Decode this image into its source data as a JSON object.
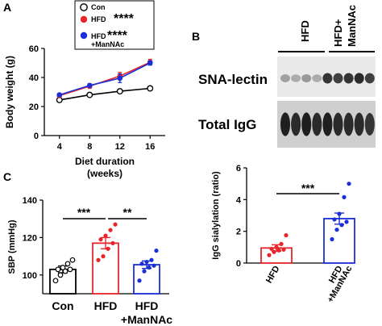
{
  "colors": {
    "con": "#000000",
    "hfd": "#e8262a",
    "mannac": "#1b2fd6",
    "white": "#ffffff"
  },
  "panels": {
    "a": "A",
    "b": "B",
    "c": "C"
  },
  "chart_data": [
    {
      "id": "A",
      "type": "line",
      "ylabel": "Body weight (g)",
      "xlabel_line1": "Diet duration",
      "xlabel_line2": "(weeks)",
      "xticks": [
        "4",
        "8",
        "12",
        "16"
      ],
      "x": [
        4,
        8,
        12,
        16
      ],
      "xlim": [
        2,
        18
      ],
      "ylim": [
        0,
        60
      ],
      "yticks": [
        "0",
        "20",
        "40",
        "60"
      ],
      "legend_position": "top-left",
      "legend": {
        "con": "Con",
        "hfd": "HFD",
        "hfd_stars": "****",
        "mannac_l1": "HFD",
        "mannac_stars": "****",
        "mannac_l2": "+ManNAc"
      },
      "series": [
        {
          "key": "con",
          "values": [
            24.5,
            28.0,
            30.5,
            32.5
          ],
          "err": [
            0.8,
            0.8,
            0.8,
            0.8
          ]
        },
        {
          "key": "hfd",
          "values": [
            27.5,
            34.0,
            41.0,
            50.5
          ],
          "err": [
            1.2,
            1.5,
            2.5,
            2.0
          ]
        },
        {
          "key": "mannac",
          "values": [
            28.0,
            34.5,
            39.5,
            50.0
          ],
          "err": [
            1.0,
            1.2,
            3.0,
            1.5
          ]
        }
      ]
    },
    {
      "id": "B",
      "type": "bar",
      "ylabel": "IgG sialylation (ratio)",
      "categories": [
        {
          "key": "hfd",
          "l1": "HFD",
          "l2": ""
        },
        {
          "key": "mannac",
          "l1": "HFD",
          "l2": "+ManNAc"
        }
      ],
      "values": [
        0.95,
        2.8
      ],
      "err": [
        0.2,
        0.35
      ],
      "points": [
        [
          0.5,
          0.7,
          0.8,
          0.85,
          0.9,
          1.0,
          1.2,
          1.75
        ],
        [
          1.5,
          2.1,
          2.4,
          2.6,
          2.75,
          3.1,
          4.15,
          5.0
        ]
      ],
      "ylim": [
        0,
        6
      ],
      "yticks": [
        "0",
        "2",
        "4",
        "6"
      ],
      "significance": "***"
    },
    {
      "id": "C",
      "type": "bar",
      "ylabel": "SBP (mmHg)",
      "categories": [
        {
          "key": "con",
          "l1": "Con",
          "l2": ""
        },
        {
          "key": "hfd",
          "l1": "HFD",
          "l2": ""
        },
        {
          "key": "mannac",
          "l1": "HFD",
          "l2": "+ManNAc"
        }
      ],
      "values": [
        103,
        117,
        105.5
      ],
      "err": [
        1.8,
        3.0,
        2.0
      ],
      "points": [
        [
          97,
          100,
          102,
          103,
          103,
          104,
          106,
          108
        ],
        [
          108,
          110,
          114,
          117,
          119,
          121,
          124,
          127
        ],
        [
          97,
          102,
          104,
          105,
          106,
          107,
          108,
          113
        ]
      ],
      "ylim": [
        90,
        140
      ],
      "yticks": [
        "100",
        "120",
        "140"
      ],
      "significance": [
        "***",
        "**"
      ]
    }
  ],
  "blot": {
    "group1": "HFD",
    "group2_l1": "HFD+",
    "group2_l2": "ManNAc",
    "row1_label": "SNA-lectin",
    "row2_label": "Total IgG",
    "row1_intensity": [
      0.35,
      0.3,
      0.38,
      0.3,
      0.85,
      0.8,
      0.85,
      0.9,
      0.8
    ],
    "row2_intensity": [
      0.95,
      0.9,
      0.95,
      0.9,
      0.95,
      0.9,
      0.9,
      0.9,
      0.85
    ]
  }
}
